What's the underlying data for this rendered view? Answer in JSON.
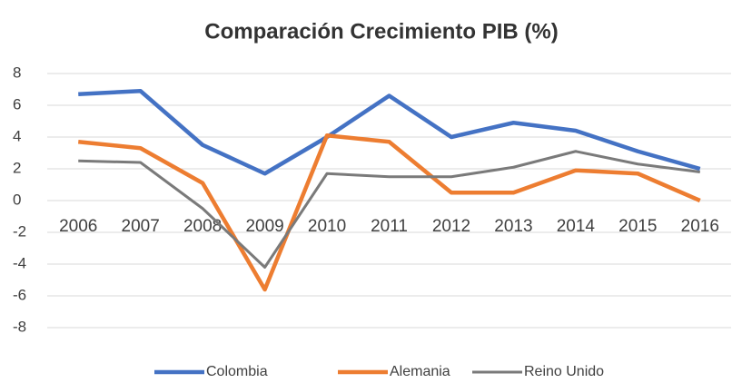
{
  "chart_data": {
    "type": "line",
    "title": "Comparación Crecimiento PIB (%)",
    "categories": [
      "2006",
      "2007",
      "2008",
      "2009",
      "2010",
      "2011",
      "2012",
      "2013",
      "2014",
      "2015",
      "2016"
    ],
    "series": [
      {
        "name": "Colombia",
        "color": "#4472c4",
        "values": [
          6.7,
          6.9,
          3.5,
          1.7,
          4.0,
          6.6,
          4.0,
          4.9,
          4.4,
          3.1,
          2.0
        ]
      },
      {
        "name": "Alemania",
        "color": "#ed7d31",
        "values": [
          3.7,
          3.3,
          1.1,
          -5.6,
          4.1,
          3.7,
          0.5,
          0.5,
          1.9,
          1.7,
          0.0
        ]
      },
      {
        "name": "Reino Unido",
        "color": "#7a7a7a",
        "values": [
          2.5,
          2.4,
          -0.5,
          -4.2,
          1.7,
          1.5,
          1.5,
          2.1,
          3.1,
          2.3,
          1.8
        ]
      }
    ],
    "ylim": [
      -8,
      8
    ],
    "yticks": [
      -8,
      -6,
      -4,
      -2,
      0,
      2,
      4,
      6,
      8
    ],
    "grid": true,
    "legend": "bottom"
  }
}
